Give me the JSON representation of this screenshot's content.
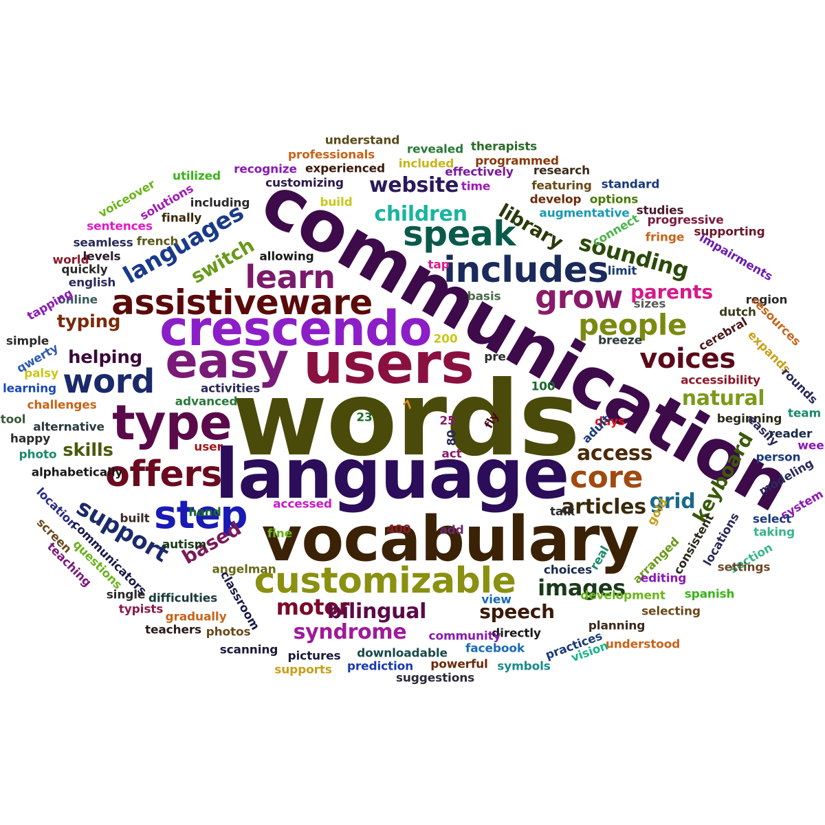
{
  "words": [
    {
      "text": "words",
      "color": "#4a4a0a"
    },
    {
      "text": "communication",
      "color": "#3d0a4a"
    },
    {
      "text": "language",
      "color": "#2b0d5a"
    },
    {
      "text": "vocabulary",
      "color": "#3b2206"
    },
    {
      "text": "users",
      "color": "#8a1040"
    },
    {
      "text": "easy",
      "color": "#7a1a78"
    },
    {
      "text": "crescendo",
      "color": "#8c1ec8"
    },
    {
      "text": "type",
      "color": "#5a0a4a"
    },
    {
      "text": "customizable",
      "color": "#8a9010"
    },
    {
      "text": "assistiveware",
      "color": "#5a0a0a"
    },
    {
      "text": "includes",
      "color": "#1a2a5a"
    },
    {
      "text": "speak",
      "color": "#0a5a4a"
    },
    {
      "text": "offers",
      "color": "#6a0a20"
    },
    {
      "text": "step",
      "color": "#1a1ab4"
    },
    {
      "text": "word",
      "color": "#1a2a6a"
    },
    {
      "text": "learn",
      "color": "#7a1a6a"
    },
    {
      "text": "grow",
      "color": "#8a1a6a"
    },
    {
      "text": "people",
      "color": "#7a8a10"
    },
    {
      "text": "core",
      "color": "#a04a10"
    },
    {
      "text": "voices",
      "color": "#5a0a1a"
    },
    {
      "text": "languages",
      "color": "#1a3a8a"
    },
    {
      "text": "support",
      "color": "#1a2a6a"
    },
    {
      "text": "website",
      "color": "#2a1a5a"
    },
    {
      "text": "children",
      "color": "#1ab4a0"
    },
    {
      "text": "library",
      "color": "#2a3a0a"
    },
    {
      "text": "sounding",
      "color": "#2a4a0a"
    },
    {
      "text": "switch",
      "color": "#6a9a1a"
    },
    {
      "text": "motor",
      "color": "#7a0a2a"
    },
    {
      "text": "bilingual",
      "color": "#5a0a4a"
    },
    {
      "text": "syndrome",
      "color": "#a01a9a"
    },
    {
      "text": "images",
      "color": "#1a3a1a"
    },
    {
      "text": "speech",
      "color": "#3a1a0a"
    },
    {
      "text": "articles",
      "color": "#3a2a0a"
    },
    {
      "text": "access",
      "color": "#4a2a0a"
    },
    {
      "text": "natural",
      "color": "#7a9a1a"
    },
    {
      "text": "grid",
      "color": "#1a6a8a"
    },
    {
      "text": "keyboard",
      "color": "#3a5a0a"
    },
    {
      "text": "parents",
      "color": "#d41a8a"
    },
    {
      "text": "typing",
      "color": "#7a2a0a"
    },
    {
      "text": "helping",
      "color": "#3a0a3a"
    },
    {
      "text": "skills",
      "color": "#4a5a0a"
    },
    {
      "text": "based",
      "color": "#7a1a5a"
    },
    {
      "text": "understand",
      "color": "#5a4a1a"
    },
    {
      "text": "professionals",
      "color": "#c8641a"
    },
    {
      "text": "revealed",
      "color": "#2a7a3a"
    },
    {
      "text": "therapists",
      "color": "#2a6a2a"
    },
    {
      "text": "included",
      "color": "#c8b41a"
    },
    {
      "text": "programmed",
      "color": "#8a3a0a"
    },
    {
      "text": "recognize",
      "color": "#8a1ab4"
    },
    {
      "text": "experienced",
      "color": "#3a1a0a"
    },
    {
      "text": "effectively",
      "color": "#7a1a9a"
    },
    {
      "text": "research",
      "color": "#3a2a1a"
    },
    {
      "text": "utilized",
      "color": "#3ab41a"
    },
    {
      "text": "customizing",
      "color": "#2a1a4a"
    },
    {
      "text": "time",
      "color": "#a01ab4"
    },
    {
      "text": "featuring",
      "color": "#6a4a1a"
    },
    {
      "text": "standard",
      "color": "#1a3a7a"
    },
    {
      "text": "voiceover",
      "color": "#6ab41a"
    },
    {
      "text": "solutions",
      "color": "#a01ab4"
    },
    {
      "text": "including",
      "color": "#2a2a2a"
    },
    {
      "text": "build",
      "color": "#c8c81a"
    },
    {
      "text": "develop",
      "color": "#6a2a0a"
    },
    {
      "text": "options",
      "color": "#4a7a0a"
    },
    {
      "text": "studies",
      "color": "#4a1a2a"
    },
    {
      "text": "augmentative",
      "color": "#1a9ab4"
    },
    {
      "text": "progressive",
      "color": "#7a1a3a"
    },
    {
      "text": "sentences",
      "color": "#e01ac8"
    },
    {
      "text": "finally",
      "color": "#3a2a0a"
    },
    {
      "text": "connect",
      "color": "#4ab44a"
    },
    {
      "text": "seamless",
      "color": "#2a2a5a"
    },
    {
      "text": "french",
      "color": "#5a5a1a"
    },
    {
      "text": "fringe",
      "color": "#c8641a"
    },
    {
      "text": "supporting",
      "color": "#6a1a2a"
    },
    {
      "text": "world",
      "color": "#8a1a2a"
    },
    {
      "text": "levels",
      "color": "#2a1a2a"
    },
    {
      "text": "allowing",
      "color": "#1a1a1a"
    },
    {
      "text": "impairments",
      "color": "#6a1ab4"
    },
    {
      "text": "quickly",
      "color": "#2a2a2a"
    },
    {
      "text": "english",
      "color": "#2a2a5a"
    },
    {
      "text": "tap",
      "color": "#e01a8a"
    },
    {
      "text": "limit",
      "color": "#1a3a7a"
    },
    {
      "text": "online",
      "color": "#3a5a5a"
    },
    {
      "text": "tapping",
      "color": "#8a1ab4"
    },
    {
      "text": "basis",
      "color": "#4a6a4a"
    },
    {
      "text": "region",
      "color": "#2a2a2a"
    },
    {
      "text": "resources",
      "color": "#c8641a"
    },
    {
      "text": "sizes",
      "color": "#5a5a5a"
    },
    {
      "text": "dutch",
      "color": "#3a3a1a"
    },
    {
      "text": "simple",
      "color": "#2a2a2a"
    },
    {
      "text": "200",
      "color": "#c8c81a"
    },
    {
      "text": "cerebral",
      "color": "#4a1a1a"
    },
    {
      "text": "breeze",
      "color": "#2a3a3a"
    },
    {
      "text": "expands",
      "color": "#c8a01a"
    },
    {
      "text": "qwerty",
      "color": "#2a5ab4"
    },
    {
      "text": "pre",
      "color": "#2a2a2a"
    },
    {
      "text": "palsy",
      "color": "#c8c81a"
    },
    {
      "text": "accessibility",
      "color": "#8a1a2a"
    },
    {
      "text": "rounds",
      "color": "#2a2a5a"
    },
    {
      "text": "learning",
      "color": "#1a4ab4"
    },
    {
      "text": "activities",
      "color": "#2a2a5a"
    },
    {
      "text": "100",
      "color": "#1a6a2a"
    },
    {
      "text": "advanced",
      "color": "#2a7a3a"
    },
    {
      "text": "challenges",
      "color": "#c8641a"
    },
    {
      "text": "7",
      "color": "#e08a1a"
    },
    {
      "text": "tool",
      "color": "#3a5a3a"
    },
    {
      "text": "23",
      "color": "#1a6a2a"
    },
    {
      "text": "25",
      "color": "#8a1a6a"
    },
    {
      "text": "fly",
      "color": "#4a0a1a"
    },
    {
      "text": "days",
      "color": "#e01a1a"
    },
    {
      "text": "adult",
      "color": "#1a3a7a"
    },
    {
      "text": "beginning",
      "color": "#2a2a1a"
    },
    {
      "text": "team",
      "color": "#1a8a6a"
    },
    {
      "text": "alternative",
      "color": "#2a3a3a"
    },
    {
      "text": "easily",
      "color": "#2a2a5a"
    },
    {
      "text": "reader",
      "color": "#1a2a4a"
    },
    {
      "text": "happy",
      "color": "#2a2a2a"
    },
    {
      "text": "80",
      "color": "#2a2a5a"
    },
    {
      "text": "week",
      "color": "#8a1ab4"
    },
    {
      "text": "photo",
      "color": "#1a8a6a"
    },
    {
      "text": "user",
      "color": "#a01a1a"
    },
    {
      "text": "act",
      "color": "#8a1a6a"
    },
    {
      "text": "person",
      "color": "#1a3a7a"
    },
    {
      "text": "alphabetically",
      "color": "#1a1a1a"
    },
    {
      "text": "modeling",
      "color": "#2a2a5a"
    },
    {
      "text": "location",
      "color": "#2a2a8a"
    },
    {
      "text": "hand",
      "color": "#1a6a2a"
    },
    {
      "text": "talk",
      "color": "#2a2a2a"
    },
    {
      "text": "system",
      "color": "#8a1ab4"
    },
    {
      "text": "built",
      "color": "#3a2a2a"
    },
    {
      "text": "select",
      "color": "#1a3a7a"
    },
    {
      "text": "gold",
      "color": "#c8a01a"
    },
    {
      "text": "400",
      "color": "#8a1a2a"
    },
    {
      "text": "add",
      "color": "#6a2a6a"
    },
    {
      "text": "taking",
      "color": "#3ab48a"
    },
    {
      "text": "screen",
      "color": "#6a4a1a"
    },
    {
      "text": "accessed",
      "color": "#c81ac8"
    },
    {
      "text": "fine",
      "color": "#6ab41a"
    },
    {
      "text": "locations",
      "color": "#2a2a5a"
    },
    {
      "text": "consistent",
      "color": "#2a2a1a"
    },
    {
      "text": "communicators",
      "color": "#1a1a4a"
    },
    {
      "text": "autism",
      "color": "#1a3a1a"
    },
    {
      "text": "section",
      "color": "#3ab48a"
    },
    {
      "text": "questions",
      "color": "#6ab41a"
    },
    {
      "text": "real",
      "color": "#1a8a6a"
    },
    {
      "text": "arranged",
      "color": "#6a9a1a"
    },
    {
      "text": "teaching",
      "color": "#7a1a7a"
    },
    {
      "text": "angelman",
      "color": "#6a6a1a"
    },
    {
      "text": "choices",
      "color": "#1a2a4a"
    },
    {
      "text": "settings",
      "color": "#6a4a2a"
    },
    {
      "text": "classroom",
      "color": "#1a1a4a"
    },
    {
      "text": "editing",
      "color": "#8a1ab4"
    },
    {
      "text": "single",
      "color": "#2a2a2a"
    },
    {
      "text": "difficulties",
      "color": "#1a3a3a"
    },
    {
      "text": "view",
      "color": "#1a6ab4"
    },
    {
      "text": "development",
      "color": "#6ab41a"
    },
    {
      "text": "spanish",
      "color": "#3ab41a"
    },
    {
      "text": "typists",
      "color": "#8a1a4a"
    },
    {
      "text": "gradually",
      "color": "#c8641a"
    },
    {
      "text": "selecting",
      "color": "#6a4a1a"
    },
    {
      "text": "teachers",
      "color": "#2a1a1a"
    },
    {
      "text": "photos",
      "color": "#6a4a1a"
    },
    {
      "text": "directly",
      "color": "#1a1a1a"
    },
    {
      "text": "planning",
      "color": "#3a2a1a"
    },
    {
      "text": "community",
      "color": "#8a1ab4"
    },
    {
      "text": "practices",
      "color": "#1a3a7a"
    },
    {
      "text": "understood",
      "color": "#c8641a"
    },
    {
      "text": "scanning",
      "color": "#1a1a3a"
    },
    {
      "text": "pictures",
      "color": "#1a1a3a"
    },
    {
      "text": "downloadable",
      "color": "#1a4a4a"
    },
    {
      "text": "facebook",
      "color": "#1a6ab4"
    },
    {
      "text": "vision",
      "color": "#1ab48a"
    },
    {
      "text": "supports",
      "color": "#c8a01a"
    },
    {
      "text": "prediction",
      "color": "#1a3ab4"
    },
    {
      "text": "powerful",
      "color": "#6a2a0a"
    },
    {
      "text": "symbols",
      "color": "#1a8a8a"
    },
    {
      "text": "suggestions",
      "color": "#2a2a3a"
    }
  ]
}
